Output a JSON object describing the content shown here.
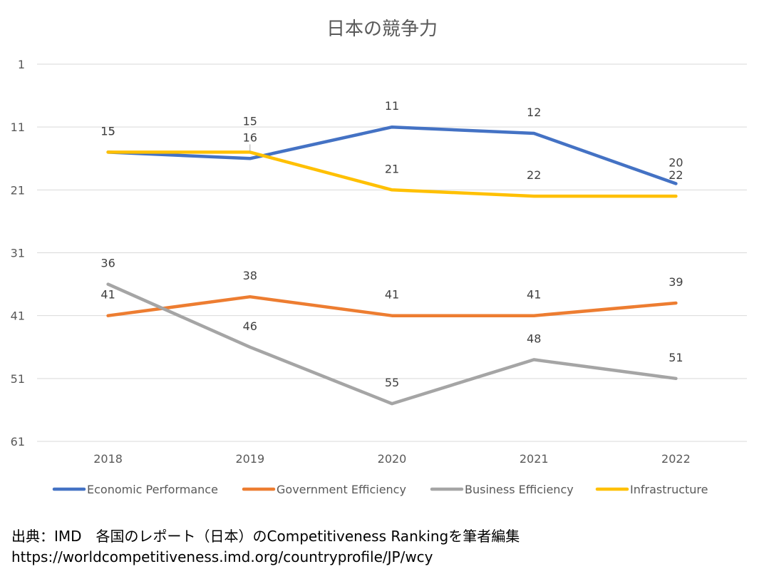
{
  "chart_data": {
    "type": "line",
    "title": "日本の競争力",
    "categories": [
      "2018",
      "2019",
      "2020",
      "2021",
      "2022"
    ],
    "ylim": [
      1,
      61
    ],
    "y_inverted": true,
    "yticks": [
      1,
      11,
      21,
      31,
      41,
      51,
      61
    ],
    "grid": true,
    "legend": "bottom",
    "series": [
      {
        "name": "Economic Performance",
        "color": "#4472C4",
        "values": [
          15,
          16,
          11,
          12,
          20
        ]
      },
      {
        "name": "Government Efficiency",
        "color": "#ED7D31",
        "values": [
          41,
          38,
          41,
          41,
          39
        ]
      },
      {
        "name": "Business Efficiency",
        "color": "#A5A5A5",
        "values": [
          36,
          46,
          55,
          48,
          51
        ]
      },
      {
        "name": "Infrastructure",
        "color": "#FFC000",
        "values": [
          15,
          15,
          21,
          22,
          22
        ]
      }
    ]
  },
  "source": {
    "line1": "出典：IMD　各国のレポート（日本）のCompetitiveness Rankingを筆者編集",
    "line2": "https://worldcompetitiveness.imd.org/countryprofile/JP/wcy"
  }
}
